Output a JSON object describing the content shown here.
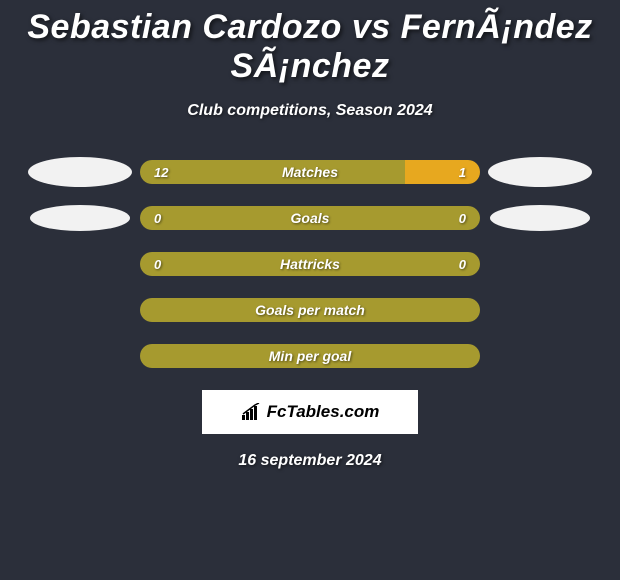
{
  "background_color": "#2b2f3a",
  "text_color": "#ffffff",
  "title": "Sebastian Cardozo vs FernÃ¡ndez SÃ¡nchez",
  "subtitle": "Club competitions, Season 2024",
  "date": "16 september 2024",
  "logo": {
    "text": "FcTables.com",
    "box_bg": "#ffffff",
    "text_color": "#000000"
  },
  "colors": {
    "player1": "#a69a2f",
    "player2": "#e7a81f",
    "neutral": "#a69a2f"
  },
  "avatars": {
    "left_row1": true,
    "right_row1": true,
    "left_row2": true,
    "right_row2": true
  },
  "rows": [
    {
      "label": "Matches",
      "left_value": "12",
      "right_value": "1",
      "left_pct": 78,
      "right_pct": 22,
      "left_color": "#a69a2f",
      "right_color": "#e7a81f",
      "single": false
    },
    {
      "label": "Goals",
      "left_value": "0",
      "right_value": "0",
      "left_pct": 50,
      "right_pct": 50,
      "left_color": "#a69a2f",
      "right_color": "#a69a2f",
      "single": true
    },
    {
      "label": "Hattricks",
      "left_value": "0",
      "right_value": "0",
      "left_pct": 50,
      "right_pct": 50,
      "left_color": "#a69a2f",
      "right_color": "#a69a2f",
      "single": true
    },
    {
      "label": "Goals per match",
      "left_value": "",
      "right_value": "",
      "left_pct": 50,
      "right_pct": 50,
      "left_color": "#a69a2f",
      "right_color": "#a69a2f",
      "single": true
    },
    {
      "label": "Min per goal",
      "left_value": "",
      "right_value": "",
      "left_pct": 50,
      "right_pct": 50,
      "left_color": "#a69a2f",
      "right_color": "#a69a2f",
      "single": true
    }
  ]
}
